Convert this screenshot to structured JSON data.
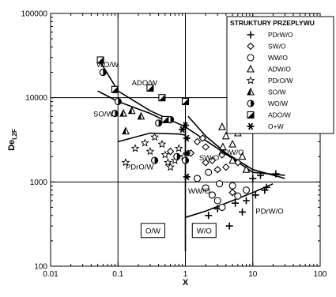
{
  "chart_data": {
    "type": "scatter",
    "title": "",
    "xlabel": "X",
    "ylabel": "De",
    "ylabel_sub": "l,2F",
    "x_scale": "log",
    "y_scale": "log",
    "xlim": [
      0.01,
      100
    ],
    "ylim": [
      100,
      100000
    ],
    "x_ticks": [
      0.01,
      0.1,
      1,
      10,
      100
    ],
    "x_tick_labels": [
      "0.01",
      "0.1",
      "1",
      "10",
      "100"
    ],
    "y_ticks": [
      100,
      1000,
      10000,
      100000
    ],
    "y_tick_labels": [
      "100",
      "1000",
      "10000",
      "100000"
    ],
    "grid": true,
    "legend_position": "top-right",
    "legend_title": "STRUKTURY PRZEPLYWU",
    "series": [
      {
        "name": "PDrW/O",
        "marker": "plus",
        "points": [
          [
            2.2,
            400
          ],
          [
            3,
            480
          ],
          [
            4.5,
            300
          ],
          [
            5.5,
            560
          ],
          [
            7,
            440
          ],
          [
            8,
            600
          ],
          [
            11,
            700
          ],
          [
            15,
            800
          ],
          [
            16,
            860
          ],
          [
            13,
            1200
          ],
          [
            22,
            1250
          ],
          [
            10,
            1100
          ]
        ]
      },
      {
        "name": "SW/O",
        "marker": "diamond",
        "points": [
          [
            1.2,
            2200
          ],
          [
            1.5,
            3000
          ],
          [
            2,
            2600
          ],
          [
            2.5,
            1800
          ],
          [
            3,
            1400
          ],
          [
            3.5,
            2100
          ],
          [
            4,
            1500
          ],
          [
            5,
            750
          ],
          [
            6,
            1700
          ],
          [
            2,
            1700
          ],
          [
            0.6,
            2300
          ],
          [
            1.8,
            3300
          ]
        ]
      },
      {
        "name": "WW/O",
        "marker": "circle",
        "points": [
          [
            1.5,
            1100
          ],
          [
            2,
            850
          ],
          [
            2.5,
            700
          ],
          [
            3,
            600
          ],
          [
            3.5,
            500
          ],
          [
            5,
            900
          ],
          [
            6,
            680
          ],
          [
            8,
            800
          ],
          [
            2.2,
            1300
          ],
          [
            3.2,
            950
          ]
        ]
      },
      {
        "name": "ADW/O",
        "marker": "triangle",
        "points": [
          [
            3.5,
            4500
          ],
          [
            4,
            3500
          ],
          [
            5,
            2800
          ],
          [
            6,
            3800
          ],
          [
            7,
            2000
          ],
          [
            8,
            1400
          ],
          [
            5,
            1800
          ],
          [
            3.6,
            2600
          ]
        ]
      },
      {
        "name": "PDrO/W",
        "marker": "star",
        "points": [
          [
            0.13,
            1700
          ],
          [
            0.18,
            2500
          ],
          [
            0.25,
            2900
          ],
          [
            0.3,
            2300
          ],
          [
            0.35,
            3400
          ],
          [
            0.45,
            2800
          ],
          [
            0.5,
            2100
          ],
          [
            0.55,
            1700
          ],
          [
            0.6,
            1500
          ],
          [
            0.7,
            1800
          ],
          [
            0.8,
            2500
          ],
          [
            0.95,
            2000
          ]
        ]
      },
      {
        "name": "SO/W",
        "marker": "triangle-filled",
        "points": [
          [
            0.12,
            6500
          ],
          [
            0.13,
            4000
          ],
          [
            0.16,
            7000
          ],
          [
            0.22,
            6000
          ]
        ]
      },
      {
        "name": "WO/W",
        "marker": "half-circle",
        "points": [
          [
            0.06,
            20000
          ],
          [
            0.09,
            6500
          ],
          [
            0.1,
            9000
          ],
          [
            0.35,
            1800
          ],
          [
            0.4,
            5000
          ],
          [
            0.6,
            5500
          ],
          [
            0.75,
            2000
          ],
          [
            1,
            1800
          ]
        ]
      },
      {
        "name": "ADO/W",
        "marker": "half-square",
        "points": [
          [
            0.055,
            28000
          ],
          [
            0.09,
            12500
          ],
          [
            0.3,
            13000
          ],
          [
            0.45,
            10000
          ],
          [
            0.5,
            5500
          ],
          [
            1,
            9000
          ]
        ]
      },
      {
        "name": "O+W",
        "marker": "asterisk",
        "points": [
          [
            0.9,
            4200
          ],
          [
            1,
            4700
          ],
          [
            1.05,
            3300
          ],
          [
            1.05,
            2200
          ],
          [
            1.05,
            1150
          ]
        ]
      }
    ],
    "lines": [
      {
        "name": "curve-1",
        "points": [
          [
            0.05,
            30000
          ],
          [
            0.1,
            12000
          ],
          [
            0.3,
            7000
          ],
          [
            1,
            4500
          ],
          [
            3,
            2500
          ],
          [
            10,
            1300
          ],
          [
            30,
            1200
          ]
        ]
      },
      {
        "name": "curve-2",
        "points": [
          [
            0.05,
            12000
          ],
          [
            0.1,
            9000
          ],
          [
            0.3,
            6500
          ],
          [
            0.6,
            5000
          ]
        ]
      },
      {
        "name": "curve-3",
        "points": [
          [
            0.1,
            3000
          ],
          [
            0.3,
            3800
          ],
          [
            0.8,
            3700
          ],
          [
            1,
            3600
          ]
        ]
      },
      {
        "name": "curve-4",
        "points": [
          [
            1.1,
            6000
          ],
          [
            2,
            3500
          ],
          [
            4,
            2200
          ],
          [
            10,
            1400
          ],
          [
            30,
            1100
          ]
        ]
      },
      {
        "name": "curve-5",
        "points": [
          [
            1,
            380
          ],
          [
            2,
            450
          ],
          [
            5,
            600
          ],
          [
            10,
            750
          ],
          [
            20,
            950
          ]
        ]
      },
      {
        "name": "boundary",
        "points": [
          [
            1,
            150
          ],
          [
            1,
            5000
          ]
        ]
      }
    ],
    "annotations": [
      {
        "text": "WO/W",
        "x": 0.048,
        "y": 23000
      },
      {
        "text": "ADO/W",
        "x": 0.16,
        "y": 14000
      },
      {
        "text": "SO/W",
        "x": 0.043,
        "y": 6000
      },
      {
        "text": "PDrO/W",
        "x": 0.13,
        "y": 1400
      },
      {
        "text": "SW/O",
        "x": 1.6,
        "y": 1800
      },
      {
        "text": "ADW/O",
        "x": 3.1,
        "y": 2100
      },
      {
        "text": "WW/O",
        "x": 1.1,
        "y": 730
      },
      {
        "text": "PDrW/O",
        "x": 11,
        "y": 420
      },
      {
        "text": "O/W",
        "x": 0.33,
        "y": 260,
        "boxed": true
      },
      {
        "text": "W/O",
        "x": 1.9,
        "y": 260,
        "boxed": true
      }
    ]
  }
}
